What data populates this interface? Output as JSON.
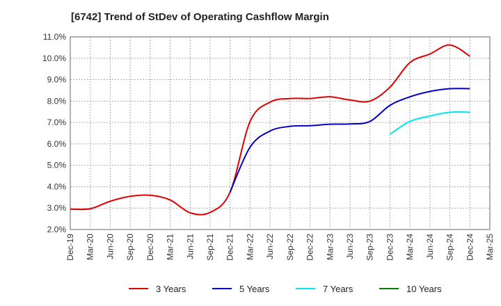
{
  "chart_data": {
    "type": "line",
    "title": "[6742]  Trend of StDev of Operating Cashflow Margin",
    "xlabel": "",
    "ylabel": "",
    "x": [
      "Dec-19",
      "Mar-20",
      "Jun-20",
      "Sep-20",
      "Dec-20",
      "Mar-21",
      "Jun-21",
      "Sep-21",
      "Dec-21",
      "Mar-22",
      "Jun-22",
      "Sep-22",
      "Dec-22",
      "Mar-23",
      "Jun-23",
      "Sep-23",
      "Dec-23",
      "Mar-24",
      "Jun-24",
      "Sep-24",
      "Dec-24",
      "Mar-25"
    ],
    "y_ticks": [
      "2.0%",
      "3.0%",
      "4.0%",
      "5.0%",
      "6.0%",
      "7.0%",
      "8.0%",
      "9.0%",
      "10.0%",
      "11.0%"
    ],
    "ylim": [
      2.0,
      11.0
    ],
    "grid": true,
    "legend_position": "bottom",
    "series": [
      {
        "name": "3 Years",
        "color": "#e00000",
        "values": [
          2.95,
          2.97,
          3.32,
          3.55,
          3.6,
          3.38,
          2.78,
          2.8,
          3.75,
          7.05,
          7.95,
          8.12,
          8.12,
          8.2,
          8.05,
          8.0,
          8.65,
          9.8,
          10.2,
          10.62,
          10.1,
          null
        ]
      },
      {
        "name": "5 Years",
        "color": "#0000cc",
        "values": [
          null,
          null,
          null,
          null,
          null,
          null,
          null,
          null,
          3.75,
          5.85,
          6.6,
          6.82,
          6.85,
          6.92,
          6.93,
          7.05,
          7.8,
          8.2,
          8.45,
          8.58,
          8.58,
          null
        ]
      },
      {
        "name": "7 Years",
        "color": "#00e5ee",
        "values": [
          null,
          null,
          null,
          null,
          null,
          null,
          null,
          null,
          null,
          null,
          null,
          null,
          null,
          null,
          null,
          null,
          6.45,
          7.05,
          7.3,
          7.48,
          7.48,
          null
        ]
      },
      {
        "name": "10 Years",
        "color": "#008000",
        "values": [
          null,
          null,
          null,
          null,
          null,
          null,
          null,
          null,
          null,
          null,
          null,
          null,
          null,
          null,
          null,
          null,
          null,
          null,
          null,
          null,
          null,
          null
        ]
      }
    ]
  }
}
